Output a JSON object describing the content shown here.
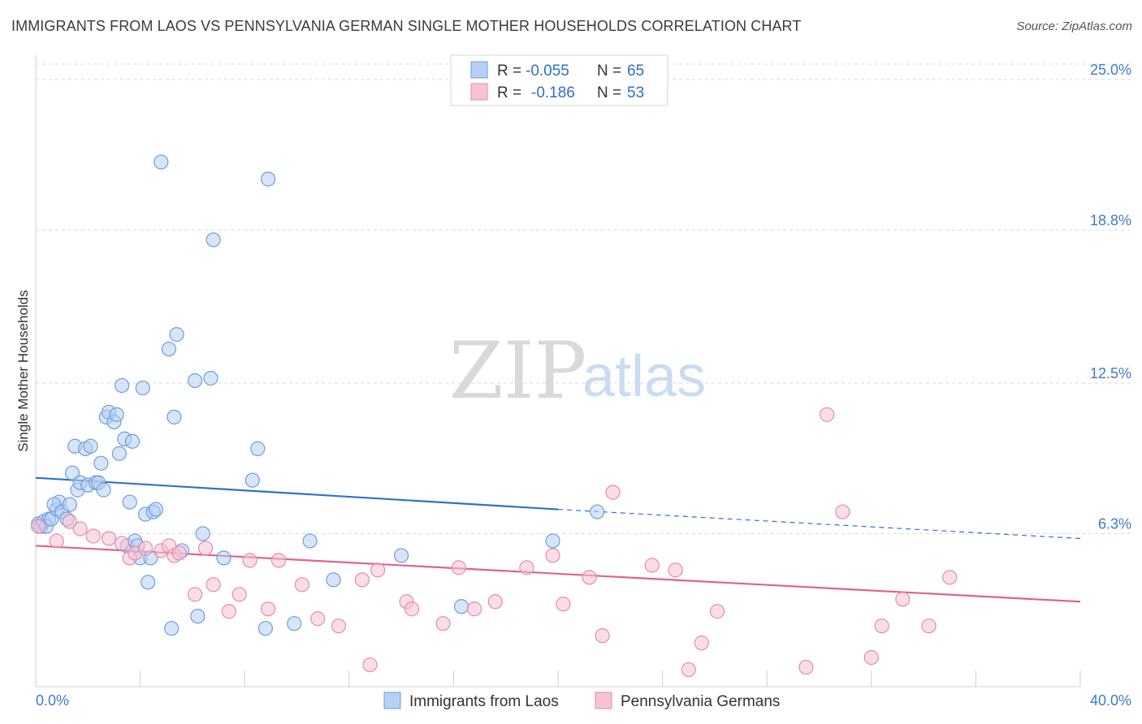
{
  "title": "IMMIGRANTS FROM LAOS VS PENNSYLVANIA GERMAN SINGLE MOTHER HOUSEHOLDS CORRELATION CHART",
  "source": "Source: ZipAtlas.com",
  "watermark": {
    "zip": "ZIP",
    "atlas": "atlas"
  },
  "colors": {
    "blue_fill": "#b7d0f2",
    "blue_stroke": "#6d9ede",
    "blue_line": "#2f72cc",
    "pink_fill": "#f6c3d3",
    "pink_stroke": "#e88aa9",
    "pink_line": "#e0628e",
    "grid": "#d9d9d9",
    "tick_text": "#3d7cc9"
  },
  "legend": {
    "rows": [
      {
        "r_label": "R =",
        "r_value": "-0.055",
        "n_label": "N =",
        "n_value": "65"
      },
      {
        "r_label": "R =",
        "r_value": "-0.186",
        "n_label": "N =",
        "n_value": "53"
      }
    ]
  },
  "chart_data": {
    "type": "scatter",
    "title": "IMMIGRANTS FROM LAOS VS PENNSYLVANIA GERMAN SINGLE MOTHER HOUSEHOLDS CORRELATION CHART",
    "xlabel": "",
    "ylabel": "Single Mother Households",
    "xlim": [
      0,
      40
    ],
    "ylim": [
      0,
      26
    ],
    "x_tick_labels": [
      "0.0%",
      "40.0%"
    ],
    "y_ticks": [
      6.3,
      12.5,
      18.8,
      25.0
    ],
    "y_tick_labels": [
      "6.3%",
      "12.5%",
      "18.8%",
      "25.0%"
    ],
    "grid": true,
    "legend_position": "top-center",
    "series": [
      {
        "name": "Immigrants from Laos",
        "r": -0.055,
        "n": 65,
        "trend": {
          "x0": 0,
          "y0": 8.6,
          "x1": 20,
          "y1": 7.3,
          "dash_to_x": 40,
          "dash_to_y": 6.1
        },
        "points": [
          [
            0.1,
            6.7
          ],
          [
            0.2,
            6.6
          ],
          [
            0.3,
            6.8
          ],
          [
            0.5,
            6.9
          ],
          [
            0.4,
            6.6
          ],
          [
            0.6,
            6.9
          ],
          [
            0.8,
            7.3
          ],
          [
            0.9,
            7.6
          ],
          [
            0.7,
            7.5
          ],
          [
            1.0,
            7.2
          ],
          [
            1.2,
            6.9
          ],
          [
            1.3,
            7.5
          ],
          [
            1.4,
            8.8
          ],
          [
            1.6,
            8.1
          ],
          [
            1.5,
            9.9
          ],
          [
            1.7,
            8.4
          ],
          [
            1.9,
            9.8
          ],
          [
            2.0,
            8.3
          ],
          [
            2.1,
            9.9
          ],
          [
            2.3,
            8.4
          ],
          [
            2.4,
            8.4
          ],
          [
            2.5,
            9.2
          ],
          [
            2.6,
            8.1
          ],
          [
            2.7,
            11.1
          ],
          [
            2.8,
            11.3
          ],
          [
            3.0,
            10.9
          ],
          [
            3.1,
            11.2
          ],
          [
            3.2,
            9.6
          ],
          [
            3.3,
            12.4
          ],
          [
            3.4,
            10.2
          ],
          [
            3.5,
            5.8
          ],
          [
            3.6,
            7.6
          ],
          [
            3.7,
            10.1
          ],
          [
            3.8,
            6.0
          ],
          [
            3.9,
            5.8
          ],
          [
            4.0,
            5.3
          ],
          [
            4.1,
            12.3
          ],
          [
            4.2,
            7.1
          ],
          [
            4.3,
            4.3
          ],
          [
            4.4,
            5.3
          ],
          [
            4.5,
            7.2
          ],
          [
            4.6,
            7.3
          ],
          [
            4.8,
            21.6
          ],
          [
            5.1,
            13.9
          ],
          [
            5.2,
            2.4
          ],
          [
            5.3,
            11.1
          ],
          [
            5.4,
            14.5
          ],
          [
            5.6,
            5.6
          ],
          [
            6.1,
            12.6
          ],
          [
            6.2,
            2.9
          ],
          [
            6.4,
            6.3
          ],
          [
            6.7,
            12.7
          ],
          [
            6.8,
            18.4
          ],
          [
            7.2,
            5.3
          ],
          [
            8.3,
            8.5
          ],
          [
            8.5,
            9.8
          ],
          [
            8.8,
            2.4
          ],
          [
            8.9,
            20.9
          ],
          [
            9.9,
            2.6
          ],
          [
            10.5,
            6.0
          ],
          [
            11.4,
            4.4
          ],
          [
            14.0,
            5.4
          ],
          [
            16.3,
            3.3
          ],
          [
            19.8,
            6.0
          ],
          [
            21.5,
            7.2
          ]
        ]
      },
      {
        "name": "Pennsylvania Germans",
        "r": -0.186,
        "n": 53,
        "trend": {
          "x0": 0,
          "y0": 5.8,
          "x1": 40,
          "y1": 3.5
        },
        "points": [
          [
            0.1,
            6.6
          ],
          [
            0.8,
            6.0
          ],
          [
            1.3,
            6.8
          ],
          [
            1.7,
            6.5
          ],
          [
            2.2,
            6.2
          ],
          [
            2.8,
            6.1
          ],
          [
            3.3,
            5.9
          ],
          [
            3.6,
            5.3
          ],
          [
            3.8,
            5.5
          ],
          [
            4.2,
            5.7
          ],
          [
            4.8,
            5.6
          ],
          [
            5.1,
            5.8
          ],
          [
            5.3,
            5.4
          ],
          [
            5.5,
            5.5
          ],
          [
            6.1,
            3.8
          ],
          [
            6.5,
            5.7
          ],
          [
            6.8,
            4.2
          ],
          [
            7.4,
            3.1
          ],
          [
            7.8,
            3.8
          ],
          [
            8.2,
            5.2
          ],
          [
            8.9,
            3.2
          ],
          [
            9.3,
            5.2
          ],
          [
            10.2,
            4.2
          ],
          [
            10.8,
            2.8
          ],
          [
            11.6,
            2.5
          ],
          [
            12.5,
            4.4
          ],
          [
            12.8,
            0.9
          ],
          [
            13.1,
            4.8
          ],
          [
            14.2,
            3.5
          ],
          [
            14.4,
            3.2
          ],
          [
            15.6,
            2.6
          ],
          [
            16.2,
            4.9
          ],
          [
            16.8,
            3.2
          ],
          [
            17.6,
            3.5
          ],
          [
            18.8,
            4.9
          ],
          [
            19.8,
            5.4
          ],
          [
            20.2,
            3.4
          ],
          [
            21.2,
            4.5
          ],
          [
            21.7,
            2.1
          ],
          [
            22.1,
            8.0
          ],
          [
            23.6,
            5.0
          ],
          [
            24.5,
            4.8
          ],
          [
            25.0,
            0.7
          ],
          [
            25.5,
            1.8
          ],
          [
            26.1,
            3.1
          ],
          [
            29.5,
            0.8
          ],
          [
            30.3,
            11.2
          ],
          [
            30.9,
            7.2
          ],
          [
            32.0,
            1.2
          ],
          [
            32.4,
            2.5
          ],
          [
            33.2,
            3.6
          ],
          [
            34.2,
            2.5
          ],
          [
            35.0,
            4.5
          ]
        ]
      }
    ]
  },
  "bottom_legend": [
    {
      "label": "Immigrants from Laos"
    },
    {
      "label": "Pennsylvania Germans"
    }
  ]
}
